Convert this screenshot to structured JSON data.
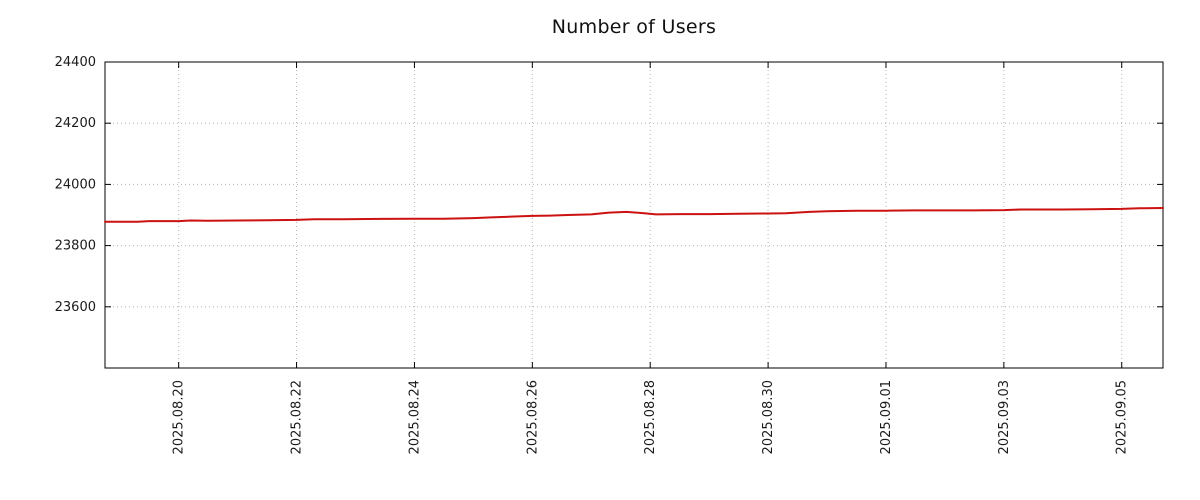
{
  "title": "Number of Users",
  "chart_data": {
    "type": "line",
    "title": "Number of Users",
    "xlabel": "",
    "ylabel": "",
    "x_unit": "days since 2025-08-19 00:00",
    "xlim": [
      -0.25,
      17.7
    ],
    "ylim": [
      23400,
      24400
    ],
    "yticks": [
      {
        "value": 23600,
        "label": "23600"
      },
      {
        "value": 23800,
        "label": "23800"
      },
      {
        "value": 24000,
        "label": "24000"
      },
      {
        "value": 24200,
        "label": "24200"
      },
      {
        "value": 24400,
        "label": "24400"
      }
    ],
    "xticks": [
      {
        "value": 1,
        "label": "2025.08.20"
      },
      {
        "value": 3,
        "label": "2025.08.22"
      },
      {
        "value": 5,
        "label": "2025.08.24"
      },
      {
        "value": 7,
        "label": "2025.08.26"
      },
      {
        "value": 9,
        "label": "2025.08.28"
      },
      {
        "value": 11,
        "label": "2025.08.30"
      },
      {
        "value": 13,
        "label": "2025.09.01"
      },
      {
        "value": 15,
        "label": "2025.09.03"
      },
      {
        "value": 17,
        "label": "2025.09.05"
      }
    ],
    "grid": true,
    "grid_style": "dotted",
    "legend": "none",
    "series": [
      {
        "name": "Number of Users",
        "color": "#cc1111",
        "points": [
          [
            -0.25,
            23878
          ],
          [
            0.3,
            23878
          ],
          [
            0.5,
            23880
          ],
          [
            1.0,
            23880
          ],
          [
            1.2,
            23882
          ],
          [
            1.5,
            23881
          ],
          [
            2.0,
            23882
          ],
          [
            2.5,
            23883
          ],
          [
            3.0,
            23884
          ],
          [
            3.3,
            23886
          ],
          [
            3.8,
            23886
          ],
          [
            4.2,
            23887
          ],
          [
            5.0,
            23888
          ],
          [
            5.5,
            23888
          ],
          [
            6.0,
            23890
          ],
          [
            6.3,
            23892
          ],
          [
            6.7,
            23895
          ],
          [
            7.0,
            23897
          ],
          [
            7.3,
            23898
          ],
          [
            7.6,
            23900
          ],
          [
            8.0,
            23902
          ],
          [
            8.3,
            23908
          ],
          [
            8.6,
            23910
          ],
          [
            8.9,
            23906
          ],
          [
            9.1,
            23902
          ],
          [
            9.5,
            23903
          ],
          [
            10.0,
            23903
          ],
          [
            10.5,
            23904
          ],
          [
            11.0,
            23905
          ],
          [
            11.3,
            23906
          ],
          [
            11.7,
            23910
          ],
          [
            12.0,
            23912
          ],
          [
            12.5,
            23914
          ],
          [
            13.0,
            23914
          ],
          [
            13.5,
            23915
          ],
          [
            14.0,
            23915
          ],
          [
            14.5,
            23915
          ],
          [
            15.0,
            23916
          ],
          [
            15.3,
            23918
          ],
          [
            16.0,
            23918
          ],
          [
            16.5,
            23919
          ],
          [
            17.0,
            23920
          ],
          [
            17.3,
            23922
          ],
          [
            17.7,
            23923
          ]
        ]
      }
    ],
    "colors": {
      "line": "#cc1111",
      "border": "#000000",
      "grid": "#b3b3b3",
      "text": "#1a1a1a",
      "background": "#ffffff"
    }
  }
}
